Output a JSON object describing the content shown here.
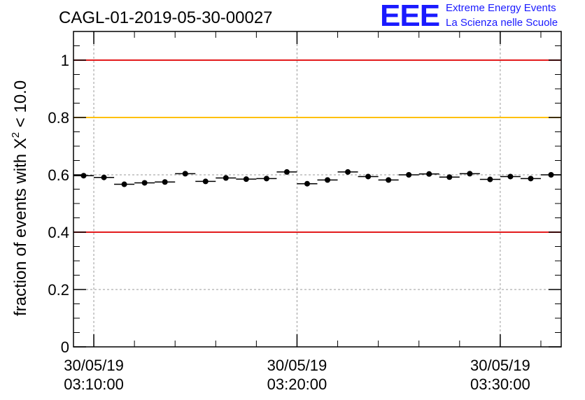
{
  "chart_data": {
    "type": "scatter",
    "title": "CAGL-01-2019-05-30-00027",
    "ylabel_main": "fraction of events with X",
    "ylabel_sup": "2",
    "ylabel_tail": " < 10.0",
    "ylim": [
      0,
      1.1
    ],
    "yticks": [
      "0",
      "0.2",
      "0.4",
      "0.6",
      "0.8",
      "1"
    ],
    "xticks": [
      {
        "date": "30/05/19",
        "time": "03:10:00"
      },
      {
        "date": "30/05/19",
        "time": "03:20:00"
      },
      {
        "date": "30/05/19",
        "time": "03:30:00"
      }
    ],
    "xlim": [
      "03:09:00",
      "03:33:00"
    ],
    "grid": true,
    "reference_lines": [
      {
        "y": 1.0,
        "color": "#e31a1c"
      },
      {
        "y": 0.8,
        "color": "#ffc000"
      },
      {
        "y": 0.4,
        "color": "#e31a1c"
      }
    ],
    "points": [
      {
        "x": "03:09:30",
        "y": 0.597
      },
      {
        "x": "03:10:30",
        "y": 0.591
      },
      {
        "x": "03:11:30",
        "y": 0.567
      },
      {
        "x": "03:12:30",
        "y": 0.572
      },
      {
        "x": "03:13:30",
        "y": 0.575
      },
      {
        "x": "03:14:30",
        "y": 0.604
      },
      {
        "x": "03:15:30",
        "y": 0.577
      },
      {
        "x": "03:16:30",
        "y": 0.589
      },
      {
        "x": "03:17:30",
        "y": 0.585
      },
      {
        "x": "03:18:30",
        "y": 0.587
      },
      {
        "x": "03:19:30",
        "y": 0.61
      },
      {
        "x": "03:20:30",
        "y": 0.569
      },
      {
        "x": "03:21:30",
        "y": 0.582
      },
      {
        "x": "03:22:30",
        "y": 0.61
      },
      {
        "x": "03:23:30",
        "y": 0.594
      },
      {
        "x": "03:24:30",
        "y": 0.582
      },
      {
        "x": "03:25:30",
        "y": 0.6
      },
      {
        "x": "03:26:30",
        "y": 0.603
      },
      {
        "x": "03:27:30",
        "y": 0.592
      },
      {
        "x": "03:28:30",
        "y": 0.604
      },
      {
        "x": "03:29:30",
        "y": 0.584
      },
      {
        "x": "03:30:30",
        "y": 0.594
      },
      {
        "x": "03:31:30",
        "y": 0.587
      },
      {
        "x": "03:32:30",
        "y": 0.6
      }
    ],
    "colors": {
      "marker": "#000000",
      "grid": "#9a9a9a"
    }
  },
  "logo": {
    "mark": "EEE",
    "line1": "Extreme Energy Events",
    "line2": "La Scienza nelle Scuole",
    "color": "#1a1aff"
  }
}
